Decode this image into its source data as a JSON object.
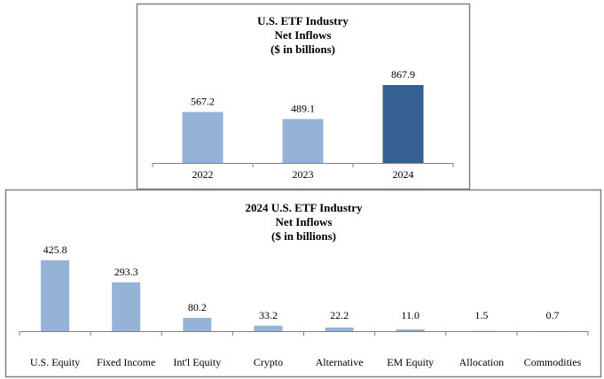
{
  "chart_data": [
    {
      "type": "bar",
      "title": [
        "U.S. ETF Industry",
        "Net Inflows",
        "($ in billions)"
      ],
      "categories": [
        "2022",
        "2023",
        "2024"
      ],
      "values": [
        567.2,
        489.1,
        867.9
      ],
      "value_labels": [
        "567.2",
        "489.1",
        "867.9"
      ],
      "colors": [
        "#95b3d7",
        "#95b3d7",
        "#366092"
      ],
      "ylim": [
        0,
        1000
      ],
      "grid": false
    },
    {
      "type": "bar",
      "title": [
        "2024 U.S. ETF Industry",
        "Net Inflows",
        "($ in billions)"
      ],
      "categories": [
        "U.S. Equity",
        "Fixed Income",
        "Int'l Equity",
        "Crypto",
        "Alternative",
        "EM Equity",
        "Allocation",
        "Commodities"
      ],
      "values": [
        425.8,
        293.3,
        80.2,
        33.2,
        22.2,
        11.0,
        1.5,
        0.7
      ],
      "value_labels": [
        "425.8",
        "293.3",
        "80.2",
        "33.2",
        "22.2",
        "11.0",
        "1.5",
        "0.7"
      ],
      "colors": [
        "#95b3d7"
      ],
      "ylim": [
        0,
        500
      ],
      "grid": false
    }
  ]
}
